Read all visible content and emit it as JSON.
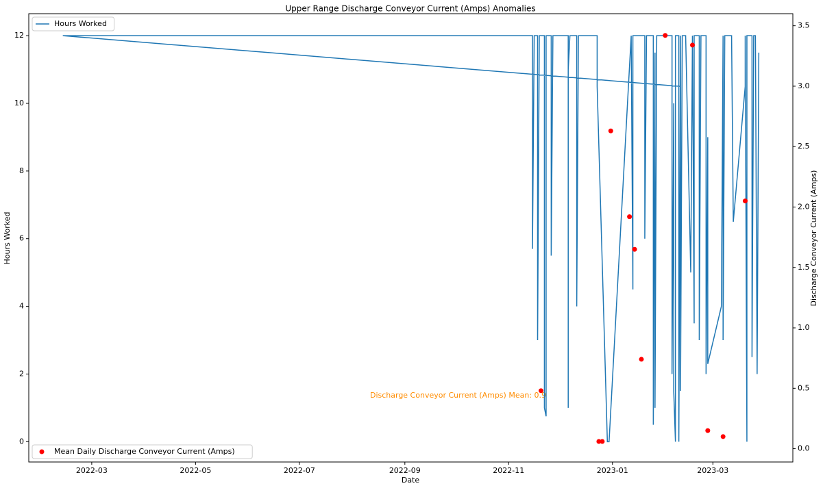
{
  "chart_data": {
    "type": "line",
    "title": "Upper Range Discharge Conveyor Current (Amps) Anomalies",
    "x_label": "Date",
    "y_label": "Hours Worked",
    "y2_label": "Discharge Conveyor Current (Amps)",
    "annotation": "Discharge Conveyor Current (Amps) Mean: 0.9",
    "xlim": [
      "2022-01-23",
      "2023-04-17"
    ],
    "xticks": [
      {
        "value": "2022-03-01",
        "label": "2022-03"
      },
      {
        "value": "2022-05-01",
        "label": "2022-05"
      },
      {
        "value": "2022-07-01",
        "label": "2022-07"
      },
      {
        "value": "2022-09-01",
        "label": "2022-09"
      },
      {
        "value": "2022-11-01",
        "label": "2022-11"
      },
      {
        "value": "2023-01-01",
        "label": "2023-01"
      },
      {
        "value": "2023-03-01",
        "label": "2023-03"
      }
    ],
    "ylim": [
      -0.6,
      12.65
    ],
    "yticks": [
      0,
      2,
      4,
      6,
      8,
      10,
      12
    ],
    "y2lim": [
      -0.11,
      3.6
    ],
    "y2ticks": [
      {
        "value": 0,
        "label": "0.0"
      },
      0.5,
      {
        "value": 1,
        "label": "1.0"
      },
      1.5,
      {
        "value": 2,
        "label": "2.0"
      },
      2.5,
      {
        "value": 3,
        "label": "3.0"
      },
      3.5
    ],
    "legend": "upper left",
    "legend2": "lower left",
    "series": [
      {
        "name": "Hours Worked",
        "type": "line",
        "color": "#1f77b4",
        "x": [
          "2023-02-10",
          "2022-02-12",
          "2022-11-08",
          "2022-11-15",
          "2022-11-15",
          "2022-11-16",
          "2022-11-18",
          "2022-11-18",
          "2022-11-19",
          "2022-11-22",
          "2022-11-22",
          "2022-11-23",
          "2022-11-23",
          "2022-11-26",
          "2022-11-26",
          "2022-11-27",
          "2022-12-06",
          "2022-12-06",
          "2022-12-06",
          "2022-12-07",
          "2022-12-11",
          "2022-12-11",
          "2022-12-12",
          "2022-12-23",
          "2022-12-23",
          "2022-12-29",
          "2022-12-30",
          "2023-01-12",
          "2023-01-13",
          "2023-01-13",
          "2023-01-20",
          "2023-01-20",
          "2023-01-21",
          "2023-01-25",
          "2023-01-25",
          "2023-01-26",
          "2023-01-26",
          "2023-01-27",
          "2023-02-05",
          "2023-02-05",
          "2023-02-06",
          "2023-02-06",
          "2023-02-07",
          "2023-02-07",
          "2023-02-09",
          "2023-02-09",
          "2023-02-10",
          "2023-02-10",
          "2023-02-11",
          "2023-02-13",
          "2023-02-16",
          "2023-02-17",
          "2023-02-18",
          "2023-02-18",
          "2023-02-21",
          "2023-02-21",
          "2023-02-22",
          "2023-02-25",
          "2023-02-25",
          "2023-02-26",
          "2023-02-26",
          "2023-03-06",
          "2023-03-07",
          "2023-03-07",
          "2023-03-08",
          "2023-03-12",
          "2023-03-13",
          "2023-03-20",
          "2023-03-20",
          "2023-03-21",
          "2023-03-21",
          "2023-03-24",
          "2023-03-24",
          "2023-03-25",
          "2023-03-26",
          "2023-03-27",
          "2023-03-28"
        ],
        "values": [
          10.5,
          12,
          12,
          12,
          5.7,
          12,
          12,
          3,
          12,
          12,
          1,
          0.75,
          12,
          12,
          5.5,
          12,
          12,
          1,
          11,
          12,
          12,
          4,
          12,
          12,
          10.5,
          0,
          0,
          12,
          4.5,
          12,
          12,
          6,
          12,
          12,
          0.5,
          11.5,
          1,
          12,
          12,
          2,
          10,
          1.5,
          0,
          12,
          12,
          0,
          12,
          1.5,
          12,
          12,
          5,
          12,
          3.5,
          12,
          12,
          3,
          12,
          12,
          2,
          9,
          2.3,
          4,
          12,
          3,
          12,
          12,
          6.5,
          10.5,
          12,
          0,
          12,
          12,
          2.5,
          12,
          12,
          2,
          11.5
        ]
      },
      {
        "name": "Mean Daily Discharge Conveyor Current (Amps)",
        "type": "scatter",
        "color": "#ff0000",
        "axis": "y2",
        "x": [
          "2022-11-20",
          "2022-12-24",
          "2022-12-26",
          "2022-12-31",
          "2023-01-11",
          "2023-01-14",
          "2023-01-18",
          "2023-02-01",
          "2023-02-17",
          "2023-02-26",
          "2023-03-07",
          "2023-03-20"
        ],
        "values": [
          0.48,
          0.06,
          0.06,
          2.63,
          1.92,
          1.65,
          0.74,
          3.42,
          3.34,
          0.15,
          0.1,
          2.05
        ]
      }
    ]
  }
}
